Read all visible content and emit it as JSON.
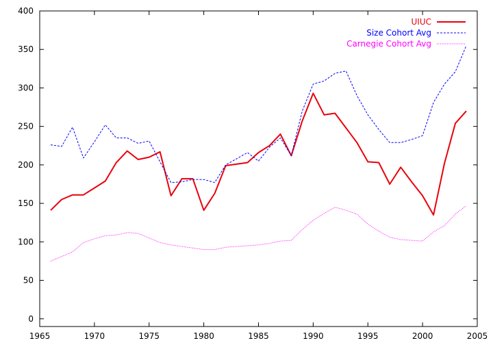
{
  "chart_data": {
    "type": "line",
    "title": "",
    "xlabel": "",
    "ylabel": "",
    "xlim": [
      1965,
      2005
    ],
    "ylim": [
      -10,
      400
    ],
    "x_ticks": [
      "1965",
      "1970",
      "1975",
      "1980",
      "1985",
      "1990",
      "1995",
      "2000",
      "2005"
    ],
    "y_ticks": [
      "0",
      "50",
      "100",
      "150",
      "200",
      "250",
      "300",
      "350",
      "400"
    ],
    "x_tick_values": [
      1965,
      1970,
      1975,
      1980,
      1985,
      1990,
      1995,
      2000,
      2005
    ],
    "y_tick_values": [
      0,
      50,
      100,
      150,
      200,
      250,
      300,
      350,
      400
    ],
    "grid": false,
    "legend_position": "top-right",
    "x": [
      1966,
      1967,
      1968,
      1969,
      1970,
      1971,
      1972,
      1973,
      1974,
      1975,
      1976,
      1977,
      1978,
      1979,
      1980,
      1981,
      1982,
      1983,
      1984,
      1985,
      1986,
      1987,
      1988,
      1989,
      1990,
      1991,
      1992,
      1993,
      1994,
      1995,
      1996,
      1997,
      1998,
      1999,
      2000,
      2001,
      2002,
      2003,
      2004
    ],
    "series": [
      {
        "name": "UIUC",
        "color": "#e8000b",
        "style": "solid",
        "values": [
          141,
          155,
          161,
          161,
          170,
          179,
          203,
          218,
          207,
          210,
          217,
          160,
          182,
          182,
          141,
          163,
          199,
          201,
          203,
          216,
          225,
          240,
          212,
          257,
          293,
          265,
          267,
          248,
          229,
          204,
          203,
          175,
          197,
          178,
          160,
          135,
          202,
          254,
          270
        ]
      },
      {
        "name": "Size Cohort Avg",
        "color": "#0000ff",
        "style": "dashed",
        "values": [
          226,
          224,
          249,
          209,
          230,
          252,
          235,
          235,
          228,
          231,
          204,
          177,
          178,
          181,
          181,
          177,
          200,
          208,
          216,
          205,
          223,
          235,
          212,
          270,
          305,
          309,
          319,
          322,
          290,
          265,
          246,
          229,
          229,
          233,
          238,
          281,
          305,
          321,
          355
        ]
      },
      {
        "name": "Carnegie Cohort Avg",
        "color": "#ff00ff",
        "style": "dotted",
        "values": [
          75,
          81,
          87,
          99,
          104,
          108,
          109,
          112,
          111,
          105,
          99,
          96,
          94,
          92,
          90,
          90,
          93,
          94,
          95,
          96,
          98,
          101,
          102,
          116,
          128,
          137,
          145,
          141,
          136,
          123,
          114,
          106,
          103,
          102,
          101,
          113,
          121,
          136,
          147
        ]
      }
    ]
  }
}
